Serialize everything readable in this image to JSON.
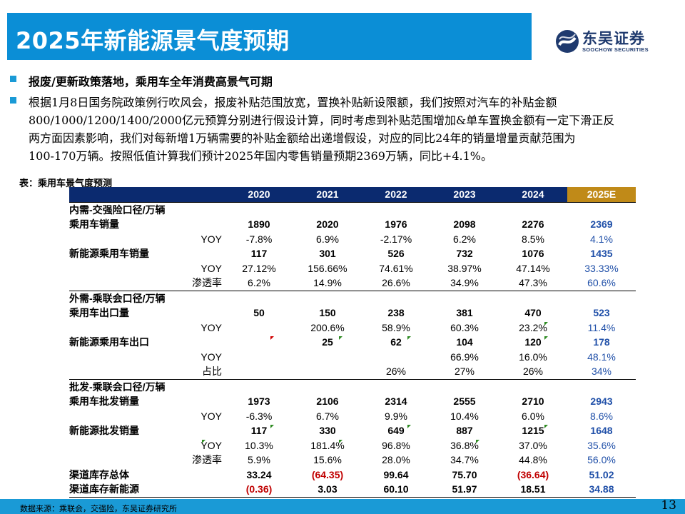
{
  "header": {
    "title": "2025年新能源景气度预期"
  },
  "logo": {
    "cn": "东吴证券",
    "en": "SOOCHOW SECURITIES"
  },
  "bullets": {
    "b1": "报废/更新政策落地，乘用车全年消费高景气可期",
    "b2_lines": [
      "根据1月8日国务院政策例行吹风会，报废补贴范围放宽，置换补贴新设限额，我们按照对汽车的补贴金额",
      "800/1000/1200/1400/2000亿元预算分别进行假设计算，同时考虑到补贴范围增加&单车置换金额有一定下滑正反",
      "两方面因素影响，我们对每新增1万辆需要的补贴金额给出递增假设，对应的同比24年的销量增量贡献范围为",
      "100-170万辆。按照低值计算我们预计2025年国内零售销量预期2369万辆，同比+4.1%。"
    ]
  },
  "table": {
    "caption": "表：乘用车景气度预测",
    "years": [
      "2020",
      "2021",
      "2022",
      "2023",
      "2024",
      "2025E"
    ],
    "sections": [
      {
        "title": "内需-交强险口径/万辆",
        "rows": [
          {
            "label": "乘用车销量",
            "type": "main",
            "values": [
              "1890",
              "2020",
              "1976",
              "2098",
              "2276",
              "2369"
            ]
          },
          {
            "label": "YOY",
            "type": "sub",
            "values": [
              "-7.8%",
              "6.9%",
              "-2.17%",
              "6.2%",
              "8.5%",
              "4.1%"
            ]
          },
          {
            "label": "新能源乘用车销量",
            "type": "main",
            "values": [
              "117",
              "301",
              "526",
              "732",
              "1076",
              "1435"
            ]
          },
          {
            "label": "YOY",
            "type": "sub",
            "values": [
              "27.12%",
              "156.66%",
              "74.61%",
              "38.97%",
              "47.14%",
              "33.33%"
            ]
          },
          {
            "label": "渗透率",
            "type": "sub",
            "values": [
              "6.2%",
              "14.9%",
              "26.6%",
              "34.9%",
              "47.3%",
              "60.6%"
            ]
          }
        ]
      },
      {
        "title": "外需-乘联会口径/万辆",
        "rows": [
          {
            "label": "乘用车出口量",
            "type": "main",
            "values": [
              "50",
              "150",
              "238",
              "381",
              "470",
              "523"
            ]
          },
          {
            "label": "YOY",
            "type": "sub",
            "values": [
              "",
              "200.6%",
              "58.9%",
              "60.3%",
              "23.2%",
              "11.4%"
            ]
          },
          {
            "label": "新能源乘用车出口",
            "type": "main",
            "values": [
              "",
              "25",
              "62",
              "104",
              "120",
              "178"
            ]
          },
          {
            "label": "YOY",
            "type": "sub",
            "values": [
              "",
              "",
              "",
              "66.9%",
              "16.0%",
              "48.1%"
            ]
          },
          {
            "label": "占比",
            "type": "sub",
            "values": [
              "",
              "",
              "26%",
              "27%",
              "26%",
              "34%"
            ]
          }
        ]
      },
      {
        "title": "批发-乘联会口径/万辆",
        "rows": [
          {
            "label": "乘用车批发销量",
            "type": "main",
            "values": [
              "1973",
              "2106",
              "2314",
              "2555",
              "2710",
              "2943"
            ]
          },
          {
            "label": "YOY",
            "type": "sub",
            "values": [
              "-6.3%",
              "6.7%",
              "9.9%",
              "10.4%",
              "6.0%",
              "8.6%"
            ]
          },
          {
            "label": "新能源批发销量",
            "type": "main",
            "values": [
              "117",
              "330",
              "649",
              "887",
              "1215",
              "1648"
            ]
          },
          {
            "label": "YOY",
            "type": "sub",
            "values": [
              "10.3%",
              "181.4%",
              "96.8%",
              "36.8%",
              "37.0%",
              "35.6%"
            ]
          },
          {
            "label": "渗透率",
            "type": "sub",
            "values": [
              "5.9%",
              "15.6%",
              "28.0%",
              "34.7%",
              "44.8%",
              "56.0%"
            ]
          },
          {
            "label": "渠道库存总体",
            "type": "main",
            "values": [
              "33.24",
              "(64.35)",
              "99.64",
              "75.70",
              "(36.64)",
              "51.02"
            ]
          },
          {
            "label": "渠道库存新能源",
            "type": "main",
            "values": [
              "(0.36)",
              "3.03",
              "60.10",
              "51.97",
              "18.51",
              "34.88"
            ]
          }
        ]
      }
    ]
  },
  "footer": {
    "source": "数据来源：乘联会，交强险，东吴证券研究所",
    "page": "13"
  },
  "colors": {
    "header_blue": "#0b8ed6",
    "table_header_navy": "#0b2a6f",
    "projection_gold": "#c08a18",
    "negative_red": "#c00000",
    "projection_blue": "#1f4fa8"
  }
}
